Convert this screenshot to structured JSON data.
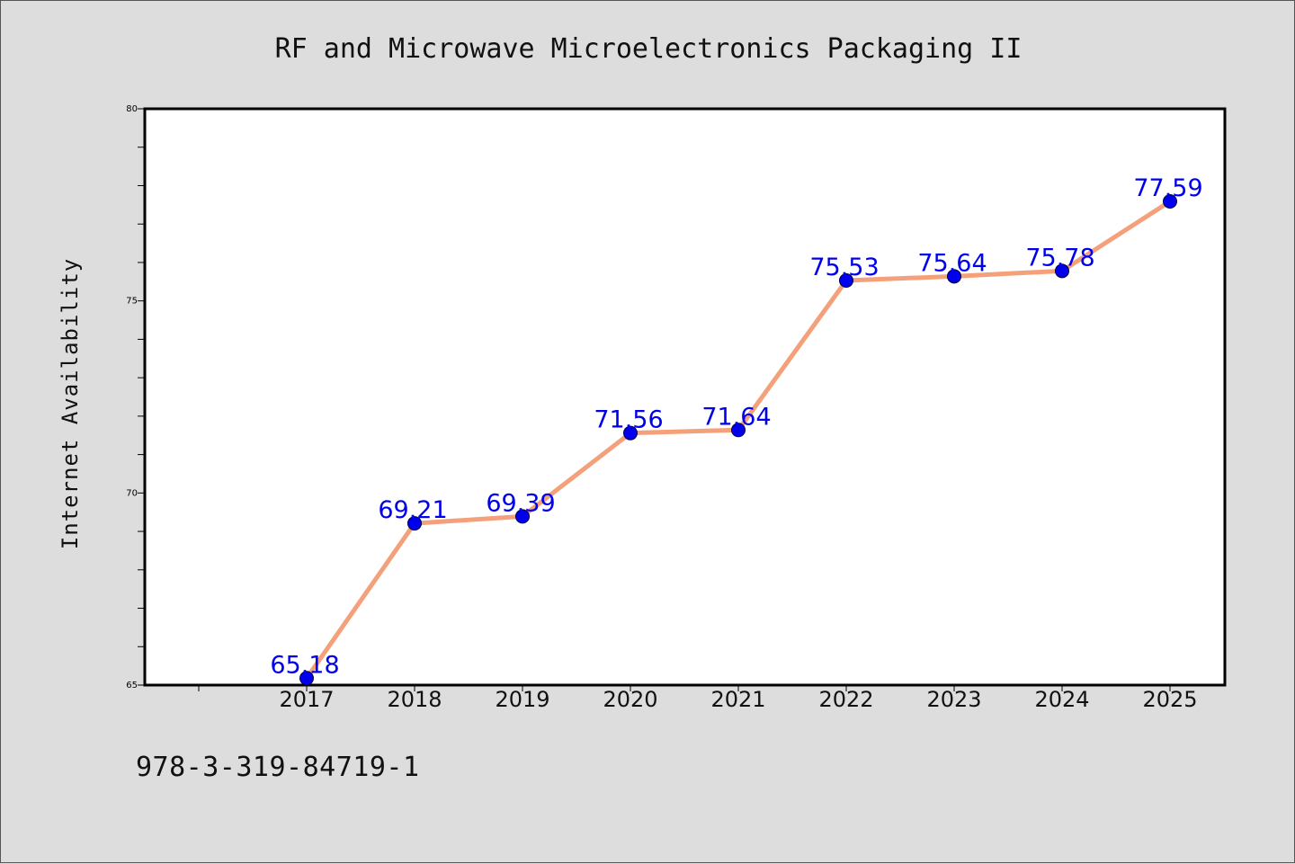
{
  "chart_data": {
    "type": "line",
    "title": "RF and Microwave Microelectronics Packaging II",
    "xlabel": "",
    "ylabel": "Internet Availability",
    "categories": [
      "2017",
      "2018",
      "2019",
      "2020",
      "2021",
      "2022",
      "2023",
      "2024",
      "2025"
    ],
    "values": [
      65.18,
      69.21,
      69.39,
      71.56,
      71.64,
      75.53,
      75.64,
      75.78,
      77.59
    ],
    "data_labels": [
      "65.18",
      "69.21",
      "69.39",
      "71.56",
      "71.64",
      "75.53",
      "75.64",
      "75.78",
      "77.59"
    ],
    "ylim": [
      65,
      80
    ],
    "yticks": [
      "65",
      "70",
      "75",
      "80"
    ],
    "grid": false,
    "colors": {
      "line": "#f4a07a",
      "marker": "#0000ee",
      "label": "#0000ee"
    }
  },
  "caption": "978-3-319-84719-1"
}
